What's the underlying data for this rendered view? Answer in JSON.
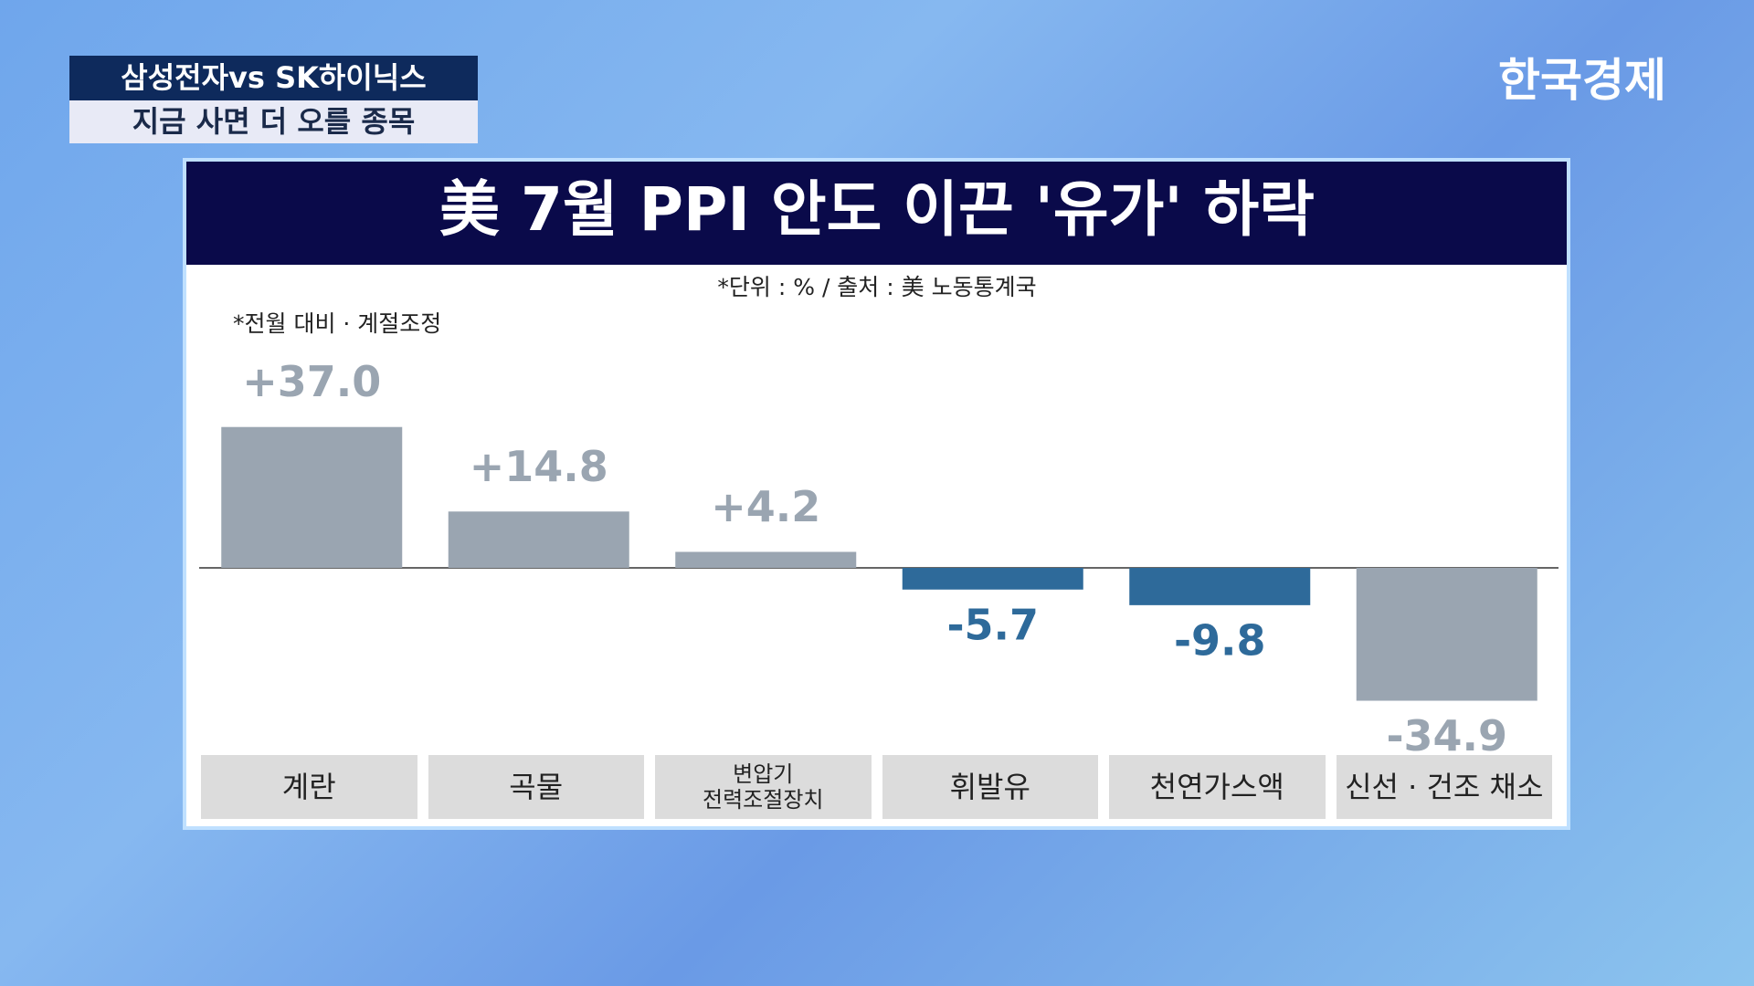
{
  "header": {
    "badge_top": "삼성전자vs SK하이닉스",
    "badge_bottom": "지금 사면 더 오를 종목",
    "logo": "한국경제"
  },
  "chart_data": {
    "type": "bar",
    "title": "美 7월 PPI 안도 이끈 '유가' 하락",
    "subtitle": "*단위 : % / 출처 : 美 노동통계국",
    "note": "*전월 대비 · 계절조정",
    "categories": [
      "계란",
      "곡물",
      "변압기\n전력조절장치",
      "휘발유",
      "천연가스액",
      "신선 · 건조 채소"
    ],
    "values": [
      37.0,
      14.8,
      4.2,
      -5.7,
      -9.8,
      -34.9
    ],
    "value_labels": [
      "+37.0",
      "+14.8",
      "+4.2",
      "-5.7",
      "-9.8",
      "-34.9"
    ],
    "colors": [
      "#9aa5b1",
      "#9aa5b1",
      "#9aa5b1",
      "#2e6a9a",
      "#2e6a9a",
      "#9aa5b1"
    ]
  }
}
